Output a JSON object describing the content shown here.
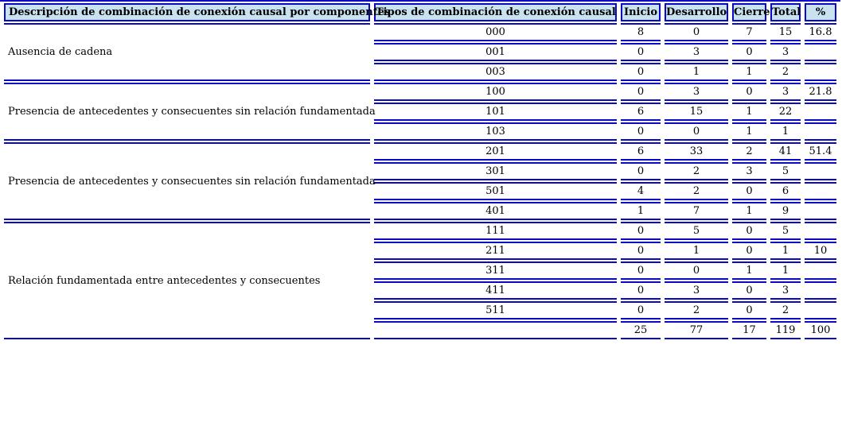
{
  "colors": {
    "border_blue": "#0a0ac4",
    "header_background": "#c9e2ef",
    "text": "#000000",
    "page_background": "#ffffff"
  },
  "table": {
    "column_headers": [
      "Descripción de combinación de conexión causal por componentes",
      "Tipos de combinación de conexión causal",
      "Inicio",
      "Desarrollo",
      "Cierre",
      "Total",
      "%"
    ],
    "groups": [
      {
        "description": "Ausencia de cadena",
        "rows": [
          {
            "code": "000",
            "inicio": "8",
            "desarrollo": "0",
            "cierre": "7",
            "total": "15",
            "pct": "16.8"
          },
          {
            "code": "001",
            "inicio": "0",
            "desarrollo": "3",
            "cierre": "0",
            "total": "3",
            "pct": ""
          },
          {
            "code": "003",
            "inicio": "0",
            "desarrollo": "1",
            "cierre": "1",
            "total": "2",
            "pct": ""
          }
        ]
      },
      {
        "description": "Presencia de antecedentes y consecuentes sin relación fundamentada",
        "rows": [
          {
            "code": "100",
            "inicio": "0",
            "desarrollo": "3",
            "cierre": "0",
            "total": "3",
            "pct": "21.8"
          },
          {
            "code": "101",
            "inicio": "6",
            "desarrollo": "15",
            "cierre": "1",
            "total": "22",
            "pct": ""
          },
          {
            "code": "103",
            "inicio": "0",
            "desarrollo": "0",
            "cierre": "1",
            "total": "1",
            "pct": ""
          }
        ]
      },
      {
        "description": "Presencia de antecedentes y consecuentes sin relación fundamentada",
        "rows": [
          {
            "code": "201",
            "inicio": "6",
            "desarrollo": "33",
            "cierre": "2",
            "total": "41",
            "pct": "51.4"
          },
          {
            "code": "301",
            "inicio": "0",
            "desarrollo": "2",
            "cierre": "3",
            "total": "5",
            "pct": ""
          },
          {
            "code": "501",
            "inicio": "4",
            "desarrollo": "2",
            "cierre": "0",
            "total": "6",
            "pct": ""
          },
          {
            "code": "401",
            "inicio": "1",
            "desarrollo": "7",
            "cierre": "1",
            "total": "9",
            "pct": ""
          }
        ]
      },
      {
        "description": "Relación fundamentada entre antecedentes y consecuentes",
        "rows": [
          {
            "code": "111",
            "inicio": "0",
            "desarrollo": "5",
            "cierre": "0",
            "total": "5",
            "pct": ""
          },
          {
            "code": "211",
            "inicio": "0",
            "desarrollo": "1",
            "cierre": "0",
            "total": "1",
            "pct": "10"
          },
          {
            "code": "311",
            "inicio": "0",
            "desarrollo": "0",
            "cierre": "1",
            "total": "1",
            "pct": ""
          },
          {
            "code": "411",
            "inicio": "0",
            "desarrollo": "3",
            "cierre": "0",
            "total": "3",
            "pct": ""
          },
          {
            "code": "511",
            "inicio": "0",
            "desarrollo": "2",
            "cierre": "0",
            "total": "2",
            "pct": ""
          }
        ]
      }
    ],
    "totals_row": {
      "code": "",
      "inicio": "25",
      "desarrollo": "77",
      "cierre": "17",
      "total": "119",
      "pct": "100"
    }
  }
}
